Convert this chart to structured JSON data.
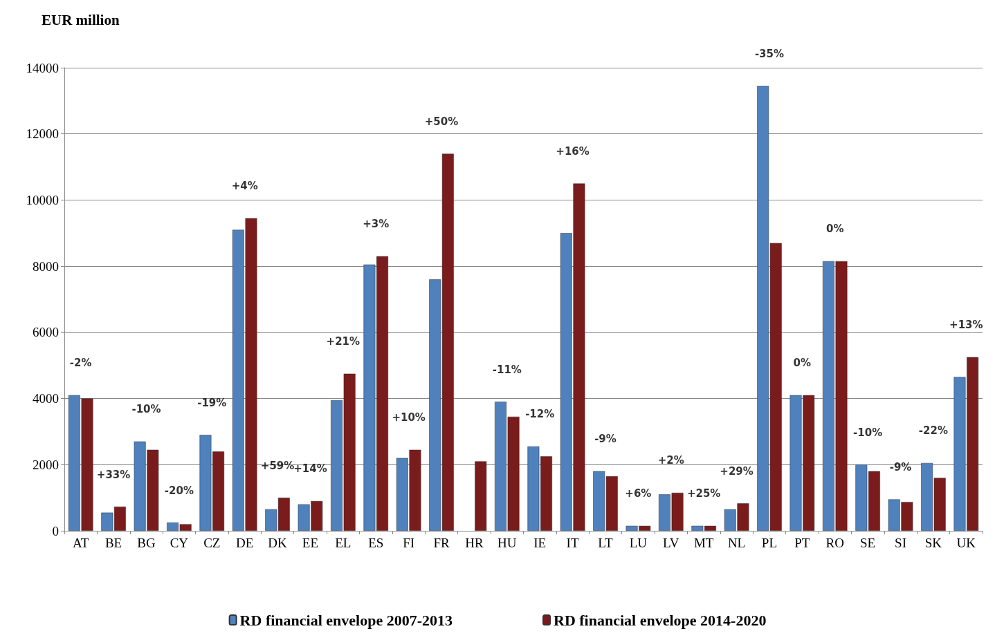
{
  "chart_data": {
    "type": "bar",
    "ylabel": "EUR million",
    "categories": [
      "AT",
      "BE",
      "BG",
      "CY",
      "CZ",
      "DE",
      "DK",
      "EE",
      "EL",
      "ES",
      "FI",
      "FR",
      "HR",
      "HU",
      "IE",
      "IT",
      "LT",
      "LU",
      "LV",
      "MT",
      "NL",
      "PL",
      "PT",
      "RO",
      "SE",
      "SI",
      "SK",
      "UK"
    ],
    "series": [
      {
        "name": "RD financial envelope 2007-2013",
        "color": "#4f81bd",
        "values": [
          4100,
          550,
          2700,
          250,
          2900,
          9100,
          650,
          800,
          3950,
          8050,
          2200,
          7600,
          null,
          3900,
          2550,
          9000,
          1800,
          150,
          1100,
          150,
          650,
          13450,
          4100,
          8150,
          2000,
          950,
          2050,
          4650
        ]
      },
      {
        "name": "RD financial envelope 2014-2020",
        "color": "#7b1c1c",
        "values": [
          4000,
          730,
          2450,
          200,
          2400,
          9450,
          1000,
          900,
          4750,
          8300,
          2450,
          11400,
          2100,
          3450,
          2250,
          10500,
          1650,
          150,
          1150,
          150,
          830,
          8700,
          4100,
          8150,
          1800,
          870,
          1600,
          5250
        ]
      }
    ],
    "annotations": [
      "-2%",
      "+33%",
      "-10%",
      "-20%",
      "-19%",
      "+4%",
      "+59%",
      "+14%",
      "+21%",
      "+3%",
      "+10%",
      "+50%",
      "-11%",
      "-12%",
      "+16%",
      "-9%",
      "+6%",
      "+2%",
      "+25%",
      "+29%",
      "-35%",
      "0%",
      "0%",
      "-10%",
      "-9%",
      "-22%",
      "+13%"
    ],
    "ylim": [
      0,
      14000
    ],
    "yticks": [
      0,
      2000,
      4000,
      6000,
      8000,
      10000,
      12000,
      14000
    ],
    "grid": true,
    "legend": "bottom"
  }
}
